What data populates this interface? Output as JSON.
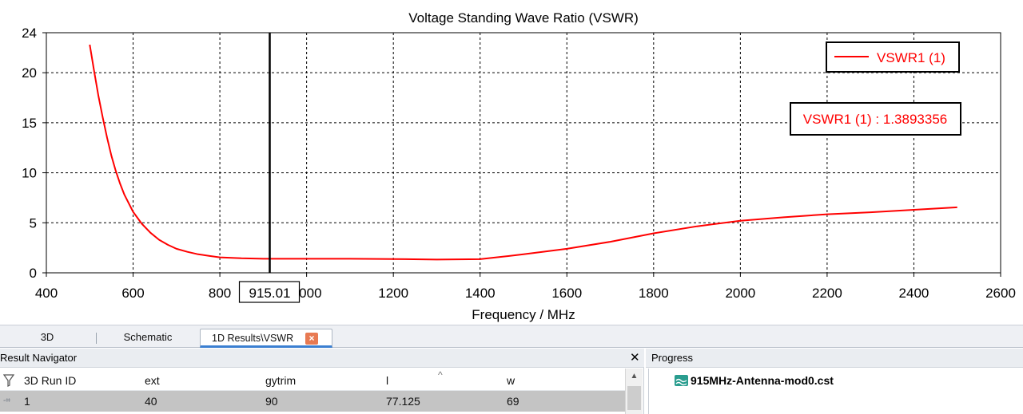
{
  "window": {
    "tabs": [
      {
        "label": "3D"
      },
      {
        "label": "Schematic"
      },
      {
        "label": "1D Results\\VSWR",
        "active": true
      }
    ]
  },
  "chart_data": {
    "type": "line",
    "title": "Voltage Standing Wave Ratio (VSWR)",
    "xlabel": "Frequency / MHz",
    "ylabel": "",
    "xlim": [
      400,
      2600
    ],
    "ylim": [
      0,
      24
    ],
    "x_ticks": [
      "400",
      "600",
      "800",
      "1000",
      "1200",
      "1400",
      "1600",
      "1800",
      "2000",
      "2200",
      "2400",
      "2600"
    ],
    "y_ticks": [
      "0",
      "5",
      "10",
      "15",
      "20",
      "24"
    ],
    "grid": true,
    "legend_position": "top-right",
    "series": [
      {
        "name": "VSWR1 (1)",
        "color": "#ff0000",
        "x": [
          500,
          510,
          520,
          530,
          540,
          550,
          560,
          570,
          580,
          600,
          620,
          640,
          660,
          680,
          700,
          725,
          750,
          775,
          800,
          850,
          900,
          950,
          1000,
          1100,
          1200,
          1300,
          1400,
          1450,
          1500,
          1600,
          1700,
          1800,
          1900,
          2000,
          2100,
          2200,
          2300,
          2400,
          2500
        ],
        "y": [
          22.8,
          20.2,
          17.7,
          15.5,
          13.5,
          11.7,
          10.2,
          8.9,
          7.8,
          6.1,
          4.9,
          4.0,
          3.3,
          2.8,
          2.4,
          2.1,
          1.85,
          1.7,
          1.55,
          1.45,
          1.4,
          1.4,
          1.4,
          1.4,
          1.38,
          1.32,
          1.36,
          1.6,
          1.85,
          2.4,
          3.1,
          3.95,
          4.65,
          5.2,
          5.55,
          5.85,
          6.05,
          6.3,
          6.55
        ]
      }
    ],
    "marker": {
      "x": 915.01,
      "x_label": "915.01",
      "readout": "VSWR1 (1) : 1.3893356"
    }
  },
  "result_navigator": {
    "title": "Result Navigator",
    "close_label": "✕",
    "columns": [
      "3D Run ID",
      "ext",
      "gytrim",
      "l",
      "w"
    ],
    "rows": [
      [
        "1",
        "40",
        "90",
        "77.125",
        "69"
      ]
    ],
    "sort_indicator": "^"
  },
  "progress": {
    "title": "Progress",
    "file": "915MHz-Antenna-mod0.cst"
  }
}
